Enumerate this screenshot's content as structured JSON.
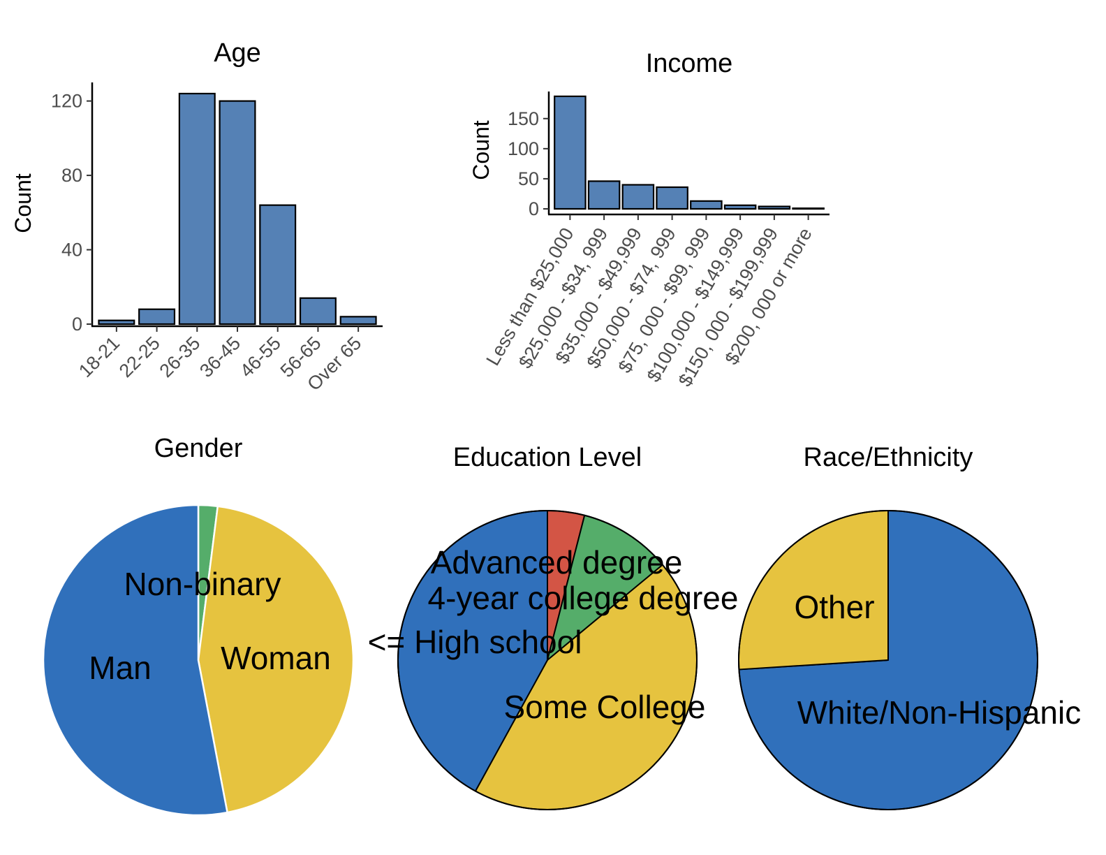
{
  "chart_data": [
    {
      "id": "age",
      "type": "bar",
      "title": "Age",
      "xlabel": "",
      "ylabel": "Count",
      "categories": [
        "18-21",
        "22-25",
        "26-35",
        "36-45",
        "46-55",
        "56-65",
        "Over 65"
      ],
      "values": [
        2,
        8,
        124,
        120,
        64,
        14,
        4
      ],
      "ylim": [
        0,
        130
      ],
      "yticks": [
        0,
        40,
        80,
        120
      ],
      "color": "#5581b5",
      "grid": false
    },
    {
      "id": "income",
      "type": "bar",
      "title": "Income",
      "xlabel": "",
      "ylabel": "Count",
      "categories": [
        "Less than $25,000",
        "$25,000 - $34, 999",
        "$35,000 - $49,999",
        "$50,000 - $74, 999",
        "$75, 000 - $99, 999",
        "$100,000 - $149,999",
        "$150, 000 - $199,999",
        "$200, 000 or more"
      ],
      "values": [
        187,
        46,
        40,
        36,
        13,
        6,
        4,
        1
      ],
      "ylim": [
        0,
        195
      ],
      "yticks": [
        0,
        50,
        100,
        150
      ],
      "color": "#5581b5",
      "grid": false
    },
    {
      "id": "gender",
      "type": "pie",
      "title": "Gender",
      "slices": [
        {
          "label": "Non-binary",
          "value": 2,
          "color": "#55ad6a"
        },
        {
          "label": "Woman",
          "value": 45,
          "color": "#e6c33f"
        },
        {
          "label": "Man",
          "value": 53,
          "color": "#3070bb"
        }
      ],
      "border": "#ffffff"
    },
    {
      "id": "education",
      "type": "pie",
      "title": "Education Level",
      "slices": [
        {
          "label": "<= High school",
          "value": 4,
          "color": "#d35545"
        },
        {
          "label": "4-year college degree",
          "value": 10,
          "color": "#55ad6a"
        },
        {
          "label": "Some College",
          "value": 44,
          "color": "#e6c33f"
        },
        {
          "label": "Advanced degree",
          "value": 42,
          "color": "#3070bb"
        }
      ],
      "border": "#000000"
    },
    {
      "id": "race",
      "type": "pie",
      "title": "Race/Ethnicity",
      "slices": [
        {
          "label": "White/Non-Hispanic",
          "value": 74,
          "color": "#3070bb"
        },
        {
          "label": "Other",
          "value": 26,
          "color": "#e6c33f"
        }
      ],
      "border": "#000000"
    }
  ]
}
